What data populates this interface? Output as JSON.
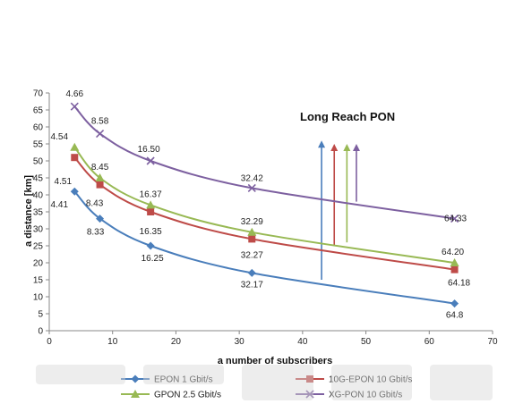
{
  "chart_data": {
    "type": "line",
    "title": "",
    "annotation": "Long Reach PON",
    "xlabel": "a number of subscribers",
    "ylabel": "a distance  [km]",
    "xlim": [
      0,
      70
    ],
    "ylim": [
      0,
      70
    ],
    "xticks": [
      0,
      10,
      20,
      30,
      40,
      50,
      60,
      70
    ],
    "yticks": [
      0,
      5,
      10,
      15,
      20,
      25,
      30,
      35,
      40,
      45,
      50,
      55,
      60,
      65,
      70
    ],
    "grid": false,
    "legend_position": "bottom",
    "series": [
      {
        "name": "EPON 1 Gbit/s",
        "color": "#4a7ebb",
        "marker": "diamond",
        "x": [
          4,
          8,
          16,
          32,
          64
        ],
        "y": [
          41,
          33,
          25,
          17,
          8
        ],
        "labels": [
          "4.41",
          "8.33",
          "16.25",
          "32.17",
          "64.8"
        ]
      },
      {
        "name": "10G-EPON 10 Gbit/s",
        "color": "#be4b48",
        "marker": "square",
        "x": [
          4,
          8,
          16,
          32,
          64
        ],
        "y": [
          51,
          43,
          35,
          27,
          18
        ],
        "labels": [
          "4.51",
          "8.43",
          "16.35",
          "32.27",
          "64.18"
        ]
      },
      {
        "name": "GPON 2.5 Gbit/s",
        "color": "#98b954",
        "marker": "triangle",
        "x": [
          4,
          8,
          16,
          32,
          64
        ],
        "y": [
          54,
          45,
          37,
          29,
          20
        ],
        "labels": [
          "4.54",
          "8.45",
          "16.37",
          "32.29",
          "64.20"
        ]
      },
      {
        "name": "XG-PON 10 Gbit/s",
        "color": "#7d60a0",
        "marker": "x",
        "x": [
          4,
          8,
          16,
          32,
          64
        ],
        "y": [
          66,
          58,
          50,
          42,
          33
        ],
        "labels": [
          "4.66",
          "8.58",
          "16.50",
          "32.42",
          "64.33"
        ]
      }
    ],
    "arrows": [
      {
        "color": "#4a7ebb",
        "x": 43,
        "y_from": 15,
        "y_to": 56
      },
      {
        "color": "#be4b48",
        "x": 45,
        "y_from": 25,
        "y_to": 55
      },
      {
        "color": "#98b954",
        "x": 47,
        "y_from": 26,
        "y_to": 55
      },
      {
        "color": "#7d60a0",
        "x": 48.5,
        "y_from": 38,
        "y_to": 55
      }
    ]
  }
}
